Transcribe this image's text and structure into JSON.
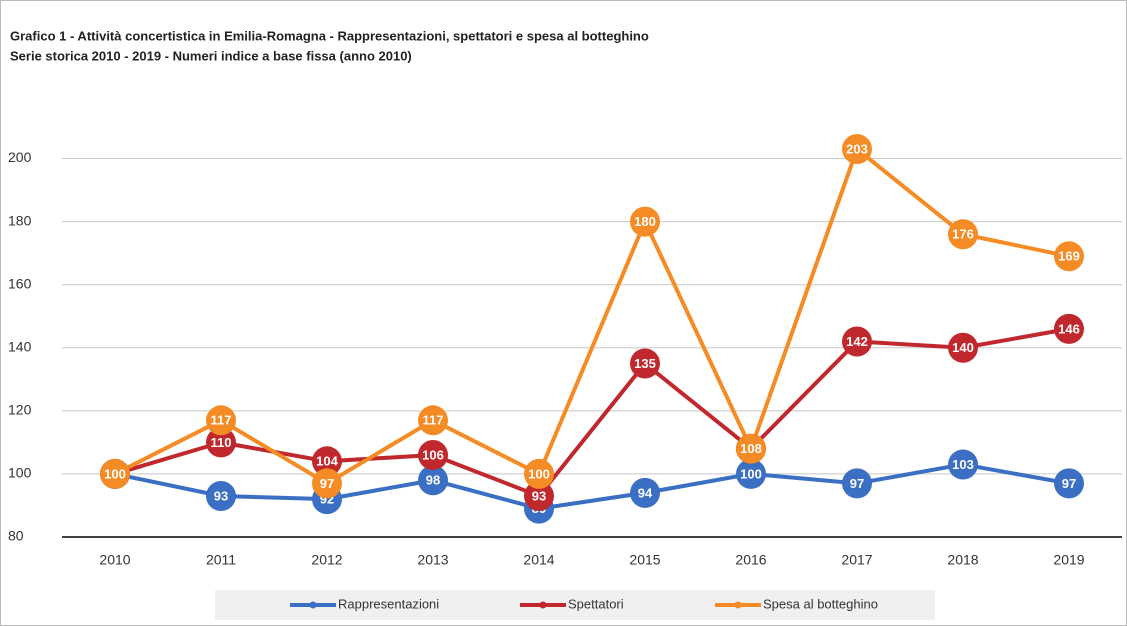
{
  "chart_data": {
    "type": "line",
    "title": "Grafico 1 - Attività concertistica in Emilia-Romagna - Rappresentazioni, spettatori e spesa al botteghino",
    "subtitle": "Serie storica 2010 - 2019 - Numeri indice a base fissa (anno 2010)",
    "categories": [
      "2010",
      "2011",
      "2012",
      "2013",
      "2014",
      "2015",
      "2016",
      "2017",
      "2018",
      "2019"
    ],
    "series": [
      {
        "name": "Rappresentazioni",
        "color": "#3a6fc4",
        "values": [
          100,
          93,
          92,
          98,
          89,
          94,
          100,
          97,
          103,
          97
        ]
      },
      {
        "name": "Spettatori",
        "color": "#c0282d",
        "values": [
          100,
          110,
          104,
          106,
          93,
          135,
          108,
          142,
          140,
          146
        ]
      },
      {
        "name": "Spesa al botteghino",
        "color": "#f58b24",
        "values": [
          100,
          117,
          97,
          117,
          100,
          180,
          108,
          203,
          176,
          169
        ]
      }
    ],
    "ylim": [
      80,
      210
    ],
    "yticks": [
      80,
      100,
      120,
      140,
      160,
      180,
      200
    ],
    "grid": true,
    "legend": "bottom"
  }
}
